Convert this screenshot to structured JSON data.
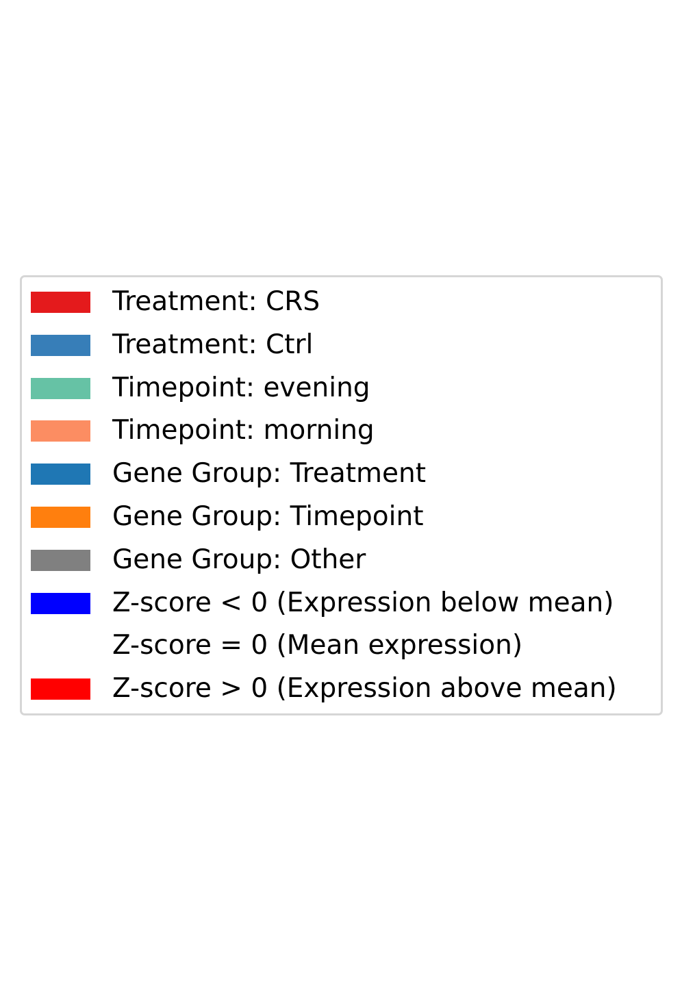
{
  "chart_data": {
    "type": "legend",
    "title": "",
    "legend": {
      "entries": [
        {
          "label": "Treatment: CRS",
          "color": "#e41a1c"
        },
        {
          "label": "Treatment: Ctrl",
          "color": "#377eb8"
        },
        {
          "label": "Timepoint: evening",
          "color": "#66c2a5"
        },
        {
          "label": "Timepoint: morning",
          "color": "#fc8d62"
        },
        {
          "label": "Gene Group: Treatment",
          "color": "#1f77b4"
        },
        {
          "label": "Gene Group: Timepoint",
          "color": "#ff7f0e"
        },
        {
          "label": "Gene Group: Other",
          "color": "#808080"
        },
        {
          "label": "Z-score < 0 (Expression below mean)",
          "color": "#0000ff"
        },
        {
          "label": "Z-score = 0 (Mean expression)",
          "color": "#ffffff"
        },
        {
          "label": "Z-score > 0 (Expression above mean)",
          "color": "#ff0000"
        }
      ],
      "frame_color": "#d6d6d6"
    }
  }
}
